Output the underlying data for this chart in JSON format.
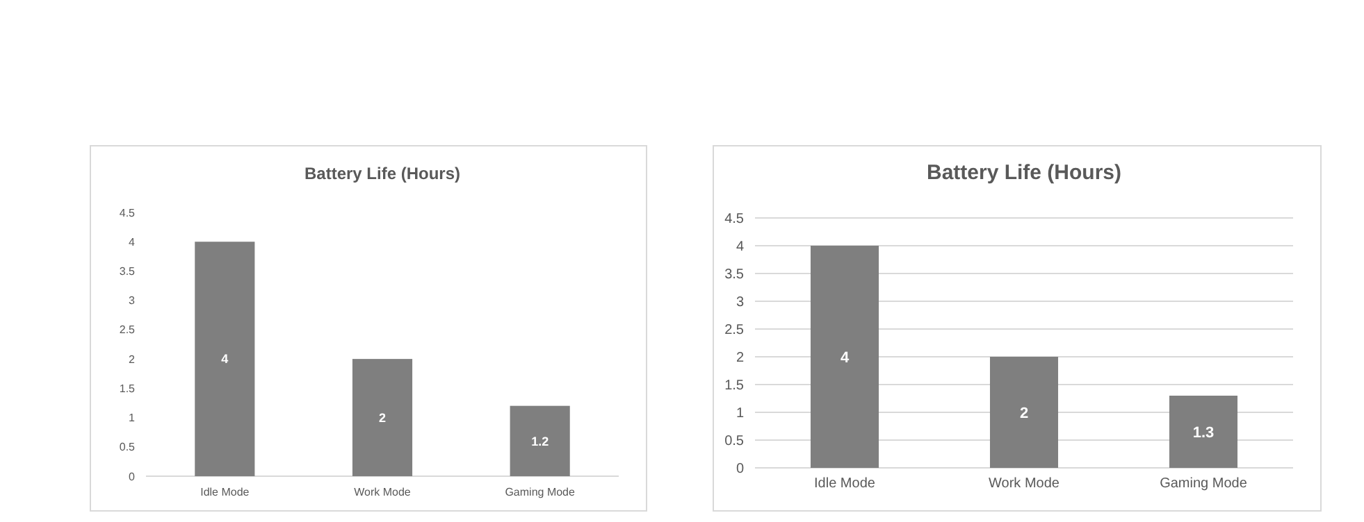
{
  "chart_data": [
    {
      "type": "bar",
      "title": "Battery Life (Hours)",
      "categories": [
        "Idle Mode",
        "Work Mode",
        "Gaming Mode"
      ],
      "values": [
        4,
        2,
        1.2
      ],
      "color": "#7f7f7f",
      "ylim": [
        0,
        4.5
      ],
      "yticks": [
        0,
        0.5,
        1,
        1.5,
        2,
        2.5,
        3,
        3.5,
        4,
        4.5
      ],
      "grid": false,
      "data_labels": true
    },
    {
      "type": "bar",
      "title": "Battery Life (Hours)",
      "categories": [
        "Idle Mode",
        "Work Mode",
        "Gaming Mode"
      ],
      "values": [
        4,
        2,
        1.3
      ],
      "color": "#7f7f7f",
      "ylim": [
        0,
        4.5
      ],
      "yticks": [
        0,
        0.5,
        1,
        1.5,
        2,
        2.5,
        3,
        3.5,
        4,
        4.5
      ],
      "grid": "y",
      "data_labels": true
    }
  ]
}
